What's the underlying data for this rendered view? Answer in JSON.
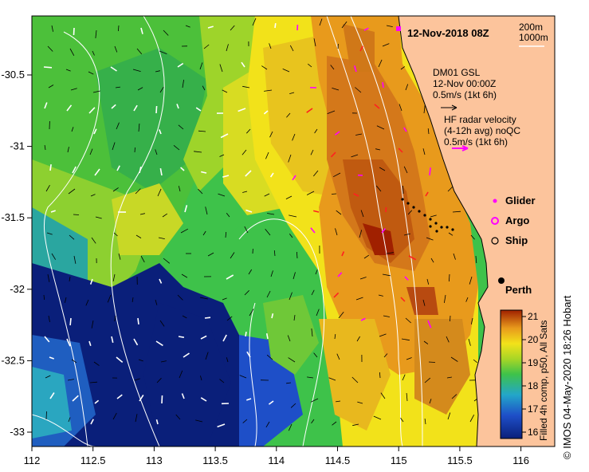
{
  "map": {
    "date_title": "12-Nov-2018 08Z",
    "depth_legend": [
      "200m",
      "1000m"
    ],
    "mooring": {
      "name": "DM01 GSL",
      "time": "12-Nov 00:00Z",
      "scale": "0.5m/s (1kt 6h)"
    },
    "hf_radar": {
      "title": "HF radar velocity",
      "subtitle": "(4-12h avg) noQC",
      "scale": "0.5m/s (1kt 6h)"
    },
    "legend_items": [
      {
        "label": "Glider",
        "color": "#ff00ff"
      },
      {
        "label": "Argo",
        "color": "#ff00ff"
      },
      {
        "label": "Ship",
        "color": "#000000"
      }
    ],
    "city": "Perth",
    "colorbar": {
      "title": "Filled 4h comp, p50, All Sats",
      "ticks": [
        "21",
        "20",
        "19",
        "18",
        "17",
        "16"
      ]
    },
    "credit": "© IMOS 04-May-2020 18:26 Hobart",
    "lon_ticks": [
      "112",
      "112.5",
      "113",
      "113.5",
      "114",
      "114.5",
      "115",
      "115.5",
      "116"
    ],
    "lat_ticks": [
      "-30.5",
      "-31",
      "-31.5",
      "-32",
      "-32.5",
      "-33"
    ],
    "colors": {
      "land": "#fcc49c",
      "sst_low": "#0a1f7a",
      "sst_high": "#a02000"
    }
  }
}
